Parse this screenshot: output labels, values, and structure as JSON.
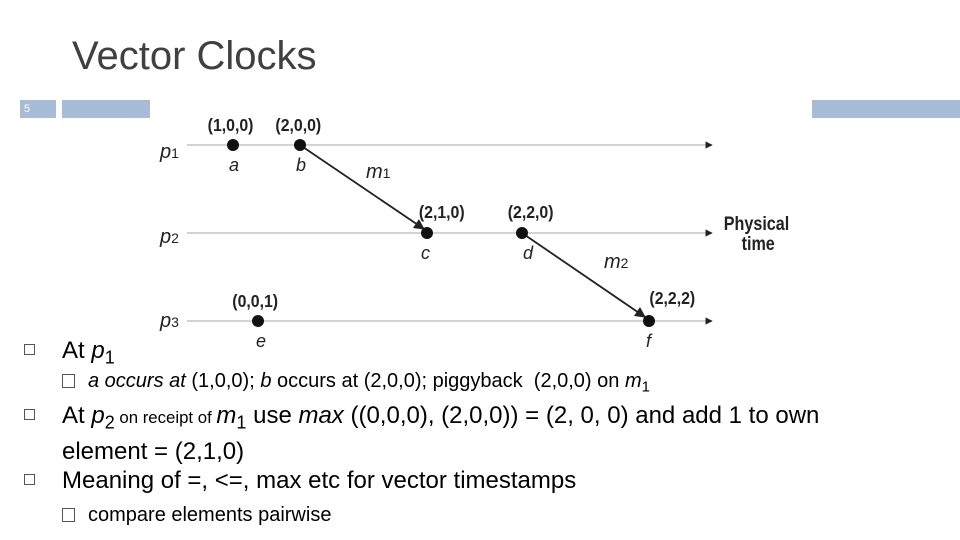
{
  "header": {
    "title": "Vector Clocks",
    "slide_number": "5"
  },
  "diagram": {
    "processes": [
      {
        "name": "p",
        "sub": "1"
      },
      {
        "name": "p",
        "sub": "2"
      },
      {
        "name": "p",
        "sub": "3"
      }
    ],
    "events": [
      {
        "label": "a",
        "timestamp": "(1,0,0)"
      },
      {
        "label": "b",
        "timestamp": "(2,0,0)"
      },
      {
        "label": "c",
        "timestamp": "(2,1,0)"
      },
      {
        "label": "d",
        "timestamp": "(2,2,0)"
      },
      {
        "label": "e",
        "timestamp": "(0,0,1)"
      },
      {
        "label": "f",
        "timestamp": "(2,2,2)"
      }
    ],
    "messages": [
      {
        "name": "m",
        "sub": "1"
      },
      {
        "name": "m",
        "sub": "2"
      }
    ],
    "axis_label": [
      "Physical",
      "time"
    ]
  },
  "bullets": [
    {
      "level": 1,
      "runs": [
        {
          "text": "At ",
          "style": "normal"
        },
        {
          "text": "p",
          "style": "italic"
        },
        {
          "text": "1",
          "style": "sub"
        }
      ]
    },
    {
      "level": 2,
      "runs": [
        {
          "text": "a",
          "style": "italic"
        },
        {
          "text": " occurs at",
          "style": "italic"
        },
        {
          "text": " (1,0,0); ",
          "style": "normal"
        },
        {
          "text": "b",
          "style": "italic"
        },
        {
          "text": " occurs at (2,0,0); piggyback  (2,0,0) on ",
          "style": "normal"
        },
        {
          "text": "m",
          "style": "italic"
        },
        {
          "text": "1",
          "style": "sub"
        }
      ]
    },
    {
      "level": 1,
      "runs": [
        {
          "text": "At ",
          "style": "normal"
        },
        {
          "text": "p",
          "style": "italic"
        },
        {
          "text": "2",
          "style": "sub"
        },
        {
          "text": " on receipt of ",
          "style": "small"
        },
        {
          "text": "m",
          "style": "italic"
        },
        {
          "text": "1",
          "style": "sub"
        },
        {
          "text": " use ",
          "style": "normal"
        },
        {
          "text": "max",
          "style": "italic"
        },
        {
          "text": " ((0,0,0), (2,0,0)) = (2, 0, 0) and add 1 to own element = (2,1,0)",
          "style": "normal"
        }
      ]
    },
    {
      "level": 1,
      "runs": [
        {
          "text": "Meaning of =, <=, max etc for vector timestamps",
          "style": "normal"
        }
      ]
    },
    {
      "level": 2,
      "runs": [
        {
          "text": "compare elements pairwise",
          "style": "normal"
        }
      ]
    }
  ]
}
